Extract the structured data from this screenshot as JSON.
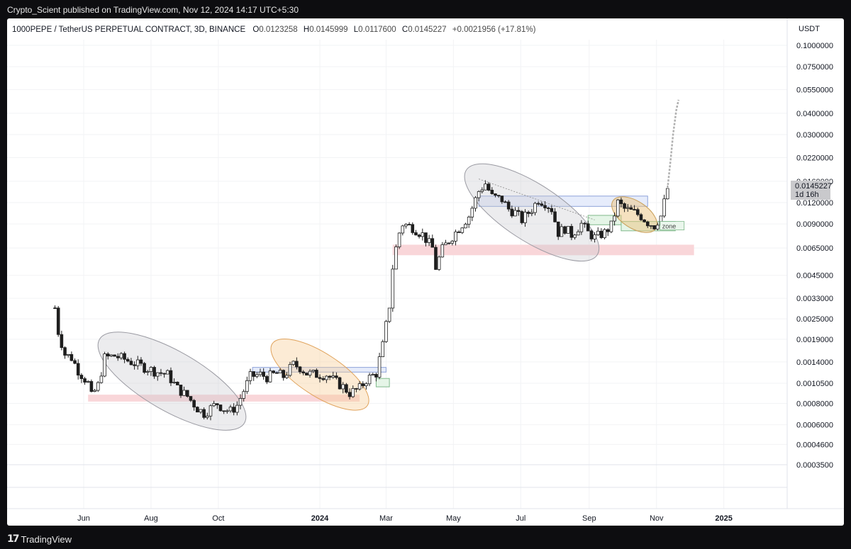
{
  "header": {
    "published": "Crypto_Scient published on TradingView.com, Nov 12, 2024 14:17 UTC+5:30"
  },
  "footer": {
    "brand": "TradingView"
  },
  "chart_data": {
    "type": "candlestick",
    "title": "1000PEPE / TetherUS PERPETUAL CONTRACT, 3D, BINANCE",
    "ohlc_labels": {
      "o_key": "O",
      "o": "0.0123258",
      "h_key": "H",
      "h": "0.0145999",
      "l_key": "L",
      "l": "0.0117600",
      "c_key": "C",
      "c": "0.0145227",
      "change": "+0.0021956 (+17.81%)"
    },
    "currency": "USDT",
    "y_scale": "log",
    "y_ticks": [
      "0.1000000",
      "0.0750000",
      "0.0550000",
      "0.0400000",
      "0.0300000",
      "0.0220000",
      "0.0160000",
      "0.0120000",
      "0.0090000",
      "0.0065000",
      "0.0045000",
      "0.0033000",
      "0.0025000",
      "0.0019000",
      "0.0014000",
      "0.0010500",
      "0.0008000",
      "0.0006000",
      "0.0004600",
      "0.0003500"
    ],
    "x_ticks": [
      "Jun",
      "Aug",
      "Oct",
      "2024",
      "Mar",
      "May",
      "Jul",
      "Sep",
      "Nov",
      "2025"
    ],
    "last_price": "0.0145227",
    "countdown": "1d 16h",
    "annotation_label": "zone",
    "close_path": [
      [
        "2023-05-06",
        0.0029
      ],
      [
        "2023-05-09",
        0.0021
      ],
      [
        "2023-05-15",
        0.00155
      ],
      [
        "2023-05-21",
        0.00148
      ],
      [
        "2023-05-27",
        0.00125
      ],
      [
        "2023-06-05",
        0.00105
      ],
      [
        "2023-06-08",
        0.00088
      ],
      [
        "2023-06-14",
        0.00102
      ],
      [
        "2023-06-20",
        0.00148
      ],
      [
        "2023-06-29",
        0.00152
      ],
      [
        "2023-07-08",
        0.00145
      ],
      [
        "2023-07-20",
        0.00135
      ],
      [
        "2023-07-29",
        0.00128
      ],
      [
        "2023-08-07",
        0.00122
      ],
      [
        "2023-08-16",
        0.00118
      ],
      [
        "2023-08-25",
        0.00098
      ],
      [
        "2023-09-03",
        0.00088
      ],
      [
        "2023-09-12",
        0.00075
      ],
      [
        "2023-09-18",
        0.0007
      ],
      [
        "2023-09-24",
        0.00075
      ],
      [
        "2023-09-30",
        0.0008
      ],
      [
        "2023-10-06",
        0.00074
      ],
      [
        "2023-10-12",
        0.00072
      ],
      [
        "2023-10-18",
        0.00078
      ],
      [
        "2023-10-24",
        0.00095
      ],
      [
        "2023-10-30",
        0.00115
      ],
      [
        "2023-11-08",
        0.00118
      ],
      [
        "2023-11-14",
        0.00114
      ],
      [
        "2023-11-23",
        0.0012
      ],
      [
        "2023-11-29",
        0.00115
      ],
      [
        "2023-12-08",
        0.00135
      ],
      [
        "2023-12-14",
        0.0013
      ],
      [
        "2023-12-20",
        0.0012
      ],
      [
        "2023-12-29",
        0.00118
      ],
      [
        "2024-01-07",
        0.00118
      ],
      [
        "2024-01-13",
        0.0011
      ],
      [
        "2024-01-22",
        0.001
      ],
      [
        "2024-01-28",
        0.00092
      ],
      [
        "2024-02-06",
        0.00098
      ],
      [
        "2024-02-12",
        0.0011
      ],
      [
        "2024-02-21",
        0.0012
      ],
      [
        "2024-02-27",
        0.00175
      ],
      [
        "2024-03-04",
        0.003
      ],
      [
        "2024-03-07",
        0.005
      ],
      [
        "2024-03-10",
        0.0065
      ],
      [
        "2024-03-13",
        0.008
      ],
      [
        "2024-03-16",
        0.009
      ],
      [
        "2024-03-25",
        0.0086
      ],
      [
        "2024-04-03",
        0.0078
      ],
      [
        "2024-04-12",
        0.0065
      ],
      [
        "2024-04-15",
        0.005
      ],
      [
        "2024-04-21",
        0.0064
      ],
      [
        "2024-04-27",
        0.0072
      ],
      [
        "2024-05-06",
        0.0085
      ],
      [
        "2024-05-15",
        0.01
      ],
      [
        "2024-05-24",
        0.014
      ],
      [
        "2024-05-30",
        0.0155
      ],
      [
        "2024-06-05",
        0.013
      ],
      [
        "2024-06-14",
        0.0125
      ],
      [
        "2024-06-20",
        0.011
      ],
      [
        "2024-06-26",
        0.0105
      ],
      [
        "2024-07-02",
        0.0095
      ],
      [
        "2024-07-11",
        0.011
      ],
      [
        "2024-07-17",
        0.0125
      ],
      [
        "2024-07-23",
        0.012
      ],
      [
        "2024-07-29",
        0.011
      ],
      [
        "2024-08-04",
        0.008
      ],
      [
        "2024-08-10",
        0.0085
      ],
      [
        "2024-08-16",
        0.0078
      ],
      [
        "2024-08-25",
        0.009
      ],
      [
        "2024-08-31",
        0.008
      ],
      [
        "2024-09-06",
        0.0075
      ],
      [
        "2024-09-15",
        0.008
      ],
      [
        "2024-09-21",
        0.0088
      ],
      [
        "2024-09-27",
        0.012
      ],
      [
        "2024-10-03",
        0.011
      ],
      [
        "2024-10-12",
        0.0105
      ],
      [
        "2024-10-18",
        0.01
      ],
      [
        "2024-10-24",
        0.0092
      ],
      [
        "2024-10-30",
        0.0088
      ],
      [
        "2024-11-05",
        0.01
      ],
      [
        "2024-11-11",
        0.0145
      ]
    ],
    "projection_path": [
      [
        "2024-11-11",
        0.0145
      ],
      [
        "2024-11-14",
        0.022
      ],
      [
        "2024-11-16",
        0.03
      ],
      [
        "2024-11-19",
        0.042
      ],
      [
        "2024-11-21",
        0.048
      ]
    ],
    "support_zones": [
      {
        "from": "2023-06-05",
        "to": "2024-02-06",
        "low": 0.00082,
        "high": 0.0009,
        "color": "#f9d6d9"
      },
      {
        "from": "2024-03-07",
        "to": "2024-12-05",
        "low": 0.0059,
        "high": 0.0068,
        "color": "#f9d6d9"
      }
    ],
    "resistance_boxes": [
      {
        "from": "2023-11-01",
        "to": "2024-03-01",
        "low": 0.00122,
        "high": 0.0013,
        "color": "#e6ecfb"
      },
      {
        "from": "2024-05-24",
        "to": "2024-10-24",
        "low": 0.0114,
        "high": 0.0131,
        "color": "#e6ecfb"
      }
    ],
    "demand_boxes": [
      {
        "from": "2024-02-21",
        "to": "2024-03-04",
        "low": 0.001,
        "high": 0.00112,
        "color": "#e5f5e7"
      },
      {
        "from": "2024-08-31",
        "to": "2024-09-30",
        "low": 0.0089,
        "high": 0.0101,
        "color": "#e5f5e7"
      },
      {
        "from": "2024-09-30",
        "to": "2024-11-18",
        "low": 0.0082,
        "high": 0.0093,
        "color": "#e5f5e7"
      }
    ],
    "ellipses": [
      {
        "cx": "2023-08-20",
        "cy": 0.00108,
        "fill": "rgba(200,200,205,0.35)",
        "stroke": "#9a9aa2"
      },
      {
        "cx": "2024-01-01",
        "cy": 0.00118,
        "fill": "rgba(248,205,150,0.4)",
        "stroke": "#e0a35c"
      },
      {
        "cx": "2024-07-11",
        "cy": 0.0105,
        "fill": "rgba(200,200,205,0.35)",
        "stroke": "#9a9aa2"
      },
      {
        "cx": "2024-10-12",
        "cy": 0.0102,
        "fill": "rgba(236,196,128,0.5)",
        "stroke": "#c9a05a"
      }
    ],
    "colors": {
      "candle": "#1e1e1e",
      "projection": "#b0b0b0",
      "price_tag_bg": "#c9c9cc"
    }
  }
}
